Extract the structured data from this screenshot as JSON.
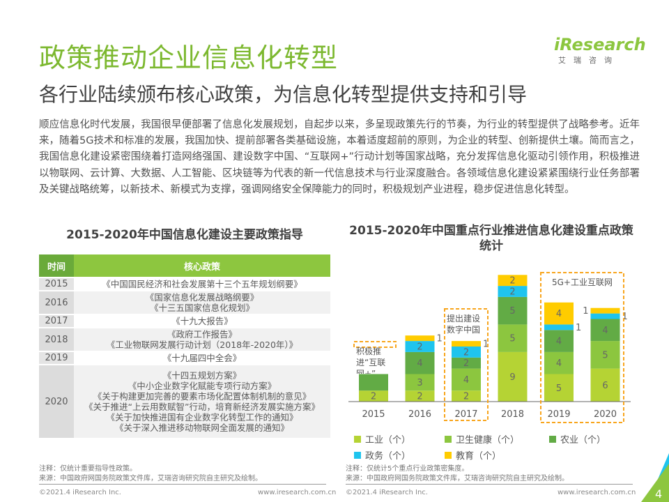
{
  "title": "政策推动企业信息化转型",
  "subtitle": "各行业陆续颁布核心政策，为信息化转型提供支持和引导",
  "paragraph": "顺应信息化时代发展，我国很早便部署了信息化发展规划，自起步以来，多呈现政策先行的节奏，为行业的转型提供了战略参考。近年来，随着5G技术和标准的发展，我国加快、提前部署各类基础设施，本着适度超前的原则，为企业的转型、创新提供土壤。简而言之，我国信息化建设紧密围绕着打造网络强国、建设数字中国、“互联网+”行动计划等国家战略，充分发挥信息化驱动引领作用，积极推进以物联网、云计算、大数据、人工智能、区块链等为代表的新一代信息技术与行业深度融合。各领域信息化建设紧紧围绕行业任务部署及关键战略统筹，以新技术、新模式为支撑，强调网络安全保障能力的同时，积极规划产业进程，稳步促进信息化转型。",
  "logo": {
    "brand": "iResearch",
    "cn": "艾瑞咨询"
  },
  "table": {
    "title": "2015-2020年中国信息化建设主要政策指导",
    "headers": [
      "时间",
      "核心政策"
    ],
    "rows": [
      {
        "year": "2015",
        "policies": [
          "《中国国民经济和社会发展第十三个五年规划纲要》"
        ]
      },
      {
        "year": "2016",
        "policies": [
          "《国家信息化发展战略纲要》",
          "《十三五国家信息化规划》"
        ]
      },
      {
        "year": "2017",
        "policies": [
          "《十九大报告》"
        ]
      },
      {
        "year": "2018",
        "policies": [
          "《政府工作报告》",
          "《工业物联网发展行动计划（2018年-2020年）》"
        ]
      },
      {
        "year": "2019",
        "policies": [
          "《十九届四中全会》"
        ]
      },
      {
        "year": "2020",
        "policies": [
          "《十四五规划方案》",
          "《中小企业数字化赋能专项行动方案》",
          "《关于构建更加完善的要素市场化配置体制机制的意见》",
          "《关于推进“上云用数赋智”行动，培育新经济发展实施方案》",
          "《关于加快推进国有企业数字化转型工作的通知》",
          "《关于深入推进移动物联网全面发展的通知》"
        ]
      }
    ],
    "note": "注释：仅统计重要指导性政策。",
    "source": "来源：中国政府网国务院政策文件库，艾瑞咨询研究院自主研究及绘制。"
  },
  "chart_data": {
    "type": "bar",
    "stacked": true,
    "title": "2015-2020年中国重点行业推进信息化建设重点政策统计",
    "categories": [
      "2015",
      "2016",
      "2017",
      "2018",
      "2019",
      "2020"
    ],
    "series": [
      {
        "name": "工业（个）",
        "color": "#b5d334",
        "values": [
          2,
          2,
          2,
          9,
          5,
          6
        ],
        "labels": [
          "2",
          "2",
          "2",
          "9",
          "5",
          "6"
        ]
      },
      {
        "name": "卫生健康（个）",
        "color": "#8cc63f",
        "values": [
          0,
          3,
          4,
          5,
          4,
          5
        ],
        "labels": [
          "",
          "3",
          "4",
          "5",
          "4",
          "5"
        ]
      },
      {
        "name": "农业（个）",
        "color": "#62ab45",
        "values": [
          3,
          4,
          2,
          5,
          4,
          4
        ],
        "labels": [
          "",
          "4",
          "2",
          "5",
          "4",
          "4"
        ]
      },
      {
        "name": "政务（个）",
        "color": "#1fc4ee",
        "values": [
          0,
          2,
          2,
          2,
          1,
          1
        ],
        "labels": [
          "",
          "2",
          "2",
          "2",
          "1",
          "1"
        ]
      },
      {
        "name": "教育（个）",
        "color": "#ffcc00",
        "values": [
          0,
          1,
          1,
          2,
          4,
          1
        ],
        "labels": [
          "",
          "1",
          "1",
          "2",
          "4",
          "1"
        ]
      }
    ],
    "annotations": [
      {
        "text": "积极推进“互联网+”",
        "years": [
          "2015"
        ]
      },
      {
        "text": "提出建设数字中国",
        "years": [
          "2017"
        ]
      },
      {
        "text": "5G+工业互联网",
        "years": [
          "2019",
          "2020"
        ]
      }
    ],
    "legend": "bottom",
    "note": "注释：仅统计5个重点行业政策密集度。",
    "source": "来源：中国政府网国务院政策文件库，艾瑞咨询研究院自主研究及绘制。"
  },
  "footer": {
    "copyright": "©2021.4 iResearch Inc.",
    "url": "www.iresearch.com.cn",
    "page": "4"
  },
  "colors": {
    "accent": "#8dc63f",
    "highlight": "#f8a51c"
  }
}
